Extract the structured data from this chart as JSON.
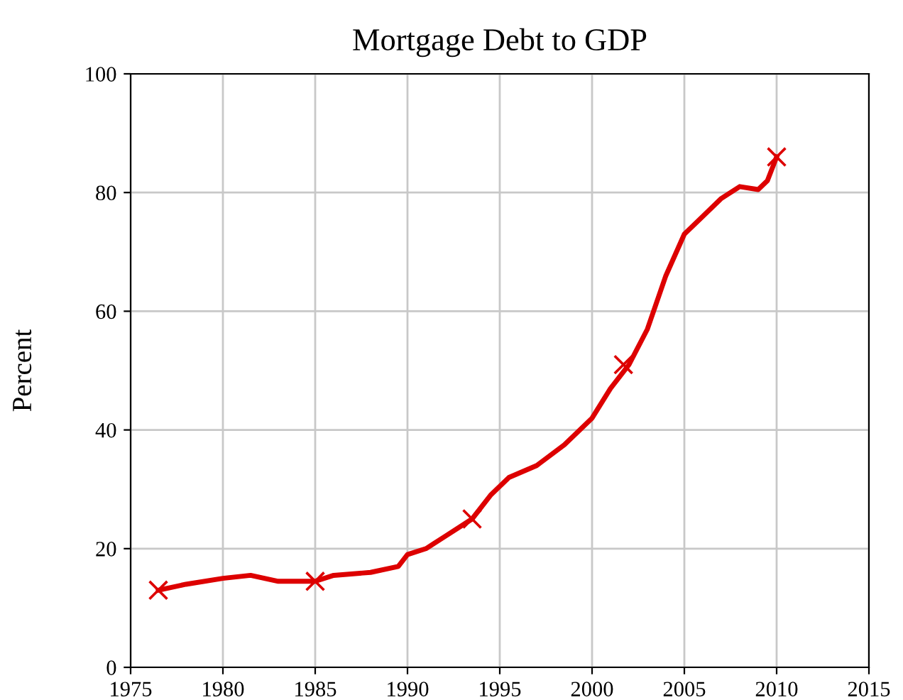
{
  "chart_data": {
    "type": "line",
    "title": "Mortgage Debt to GDP",
    "ylabel": "Percent",
    "series": [
      {
        "color": "#dd0000",
        "marker": "none",
        "x": [
          1976.5,
          1978,
          1980,
          1981.5,
          1983,
          1985,
          1986,
          1988,
          1989.5,
          1990,
          1991,
          1992,
          1993.5,
          1994.5,
          1995.5,
          1997,
          1998.5,
          2000,
          2001,
          2002,
          2003,
          2004,
          2005,
          2006,
          2007,
          2008,
          2009,
          2009.5,
          2010
        ],
        "values": [
          13,
          14,
          15,
          15.5,
          14.5,
          14.5,
          15.5,
          16,
          17,
          19,
          20,
          22,
          25,
          29,
          32,
          34,
          37.5,
          42,
          47,
          51,
          57,
          66,
          73,
          76,
          79,
          81,
          80.5,
          82,
          86
        ]
      },
      {
        "type": "scatter",
        "color": "#dd0000",
        "marker": "cross",
        "x": [
          1976.5,
          1985,
          1993.5,
          2001.7,
          2010
        ],
        "values": [
          13,
          14.5,
          25,
          51,
          86
        ]
      }
    ],
    "xlim": [
      1975,
      2015
    ],
    "xticks": [
      1975,
      1980,
      1985,
      1990,
      1995,
      2000,
      2005,
      2010,
      2015
    ],
    "ylim": [
      0,
      100
    ],
    "yticks": [
      0,
      20,
      40,
      60,
      80,
      100
    ],
    "grid": true,
    "line_style": "solid"
  }
}
